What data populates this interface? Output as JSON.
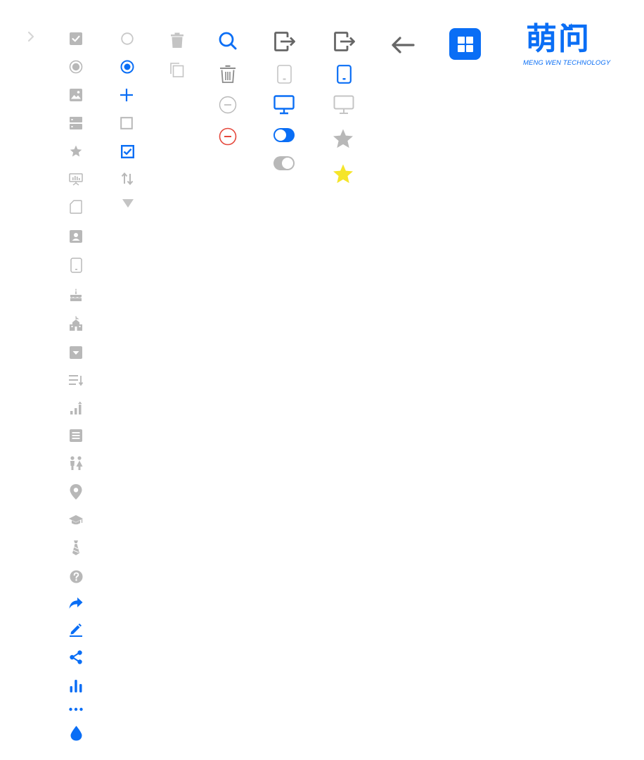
{
  "colors": {
    "gray": "#b8b8b8",
    "dark_gray": "#666666",
    "blue": "#0a6ef5",
    "red": "#e5483c",
    "yellow": "#f5e52a",
    "white": "#ffffff"
  },
  "logo": {
    "chinese": "萌问",
    "english": "MENG WEN TECHNOLOGY"
  }
}
